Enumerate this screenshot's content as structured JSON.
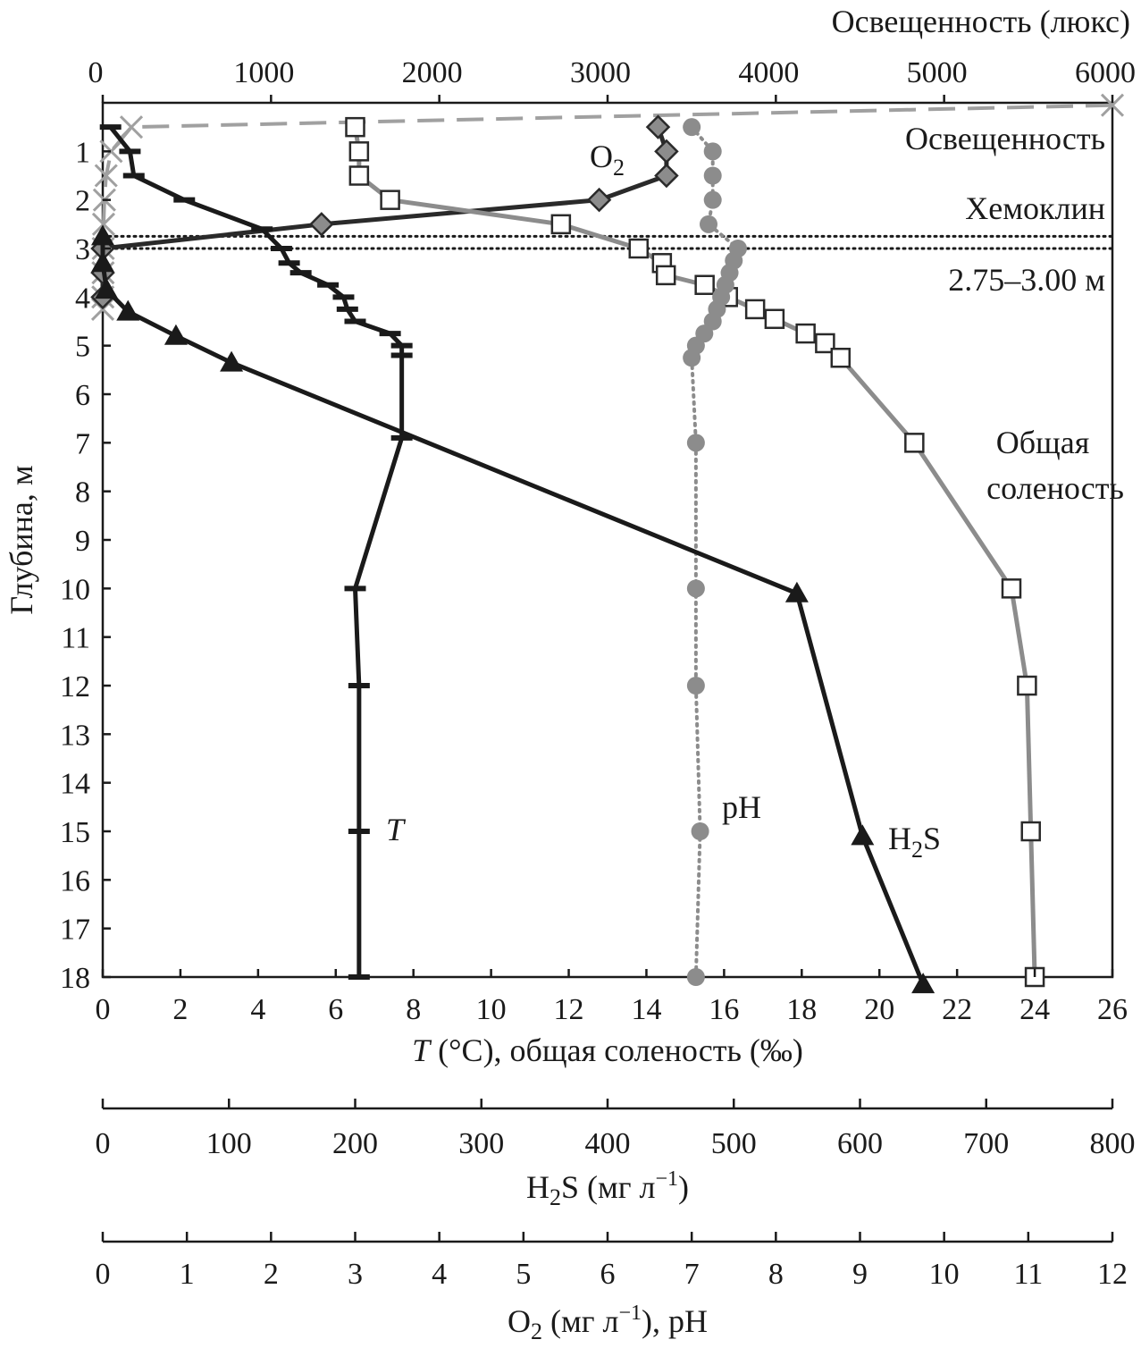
{
  "chart_data": {
    "type": "line",
    "orientation": "depth-profile",
    "y_axis": {
      "label": "Глубина, м",
      "range": [
        0,
        18
      ],
      "ticks": [
        1,
        2,
        3,
        4,
        5,
        6,
        7,
        8,
        9,
        10,
        11,
        12,
        13,
        14,
        15,
        16,
        17,
        18
      ]
    },
    "x_axes": {
      "temperature_salinity": {
        "label_prefix": "T",
        "label_rest": " (°C), общая соленость (‰)",
        "range": [
          0,
          26
        ],
        "ticks": [
          0,
          2,
          4,
          6,
          8,
          10,
          12,
          14,
          16,
          18,
          20,
          22,
          24,
          26
        ]
      },
      "illuminance": {
        "label": "Освещенность (люкс)",
        "range": [
          0,
          6000
        ],
        "ticks": [
          0,
          1000,
          2000,
          3000,
          4000,
          5000,
          6000
        ]
      },
      "h2s": {
        "label_main": "H",
        "label_sub": "2",
        "label_rest": "S (мг л",
        "label_sup": "−1",
        "label_close": ")",
        "range": [
          0,
          800
        ],
        "ticks": [
          0,
          100,
          200,
          300,
          400,
          500,
          600,
          700,
          800
        ]
      },
      "o2_ph": {
        "label_main": "O",
        "label_sub": "2",
        "label_rest": " (мг л",
        "label_sup": "−1",
        "label_close": "), pH",
        "range": [
          0,
          12
        ],
        "ticks": [
          0,
          1,
          2,
          3,
          4,
          5,
          6,
          7,
          8,
          9,
          10,
          11,
          12
        ]
      }
    },
    "series": [
      {
        "name": "Освещенность",
        "axis": "illuminance",
        "color": "#a0a0a0",
        "marker": "x",
        "style": "dashed",
        "points": [
          [
            6000,
            0.05
          ],
          [
            170,
            0.5
          ],
          [
            50,
            1.0
          ],
          [
            20,
            1.5
          ],
          [
            10,
            2.0
          ],
          [
            5,
            2.5
          ],
          [
            3,
            3.0
          ],
          [
            2,
            3.5
          ],
          [
            1,
            4.0
          ],
          [
            0,
            4.25
          ]
        ]
      },
      {
        "name": "O2",
        "axis": "o2_ph",
        "color": "#2a2a2a",
        "marker": "diamond",
        "style": "solid",
        "points": [
          [
            6.6,
            0.5
          ],
          [
            6.7,
            1.0
          ],
          [
            6.7,
            1.5
          ],
          [
            5.9,
            2.0
          ],
          [
            2.6,
            2.5
          ],
          [
            0,
            3.0
          ],
          [
            0,
            3.5
          ],
          [
            0,
            4.0
          ]
        ]
      },
      {
        "name": "Общая соленость",
        "axis": "temperature_salinity",
        "color": "#8c8c8c",
        "marker": "square",
        "style": "solid",
        "points": [
          [
            6.5,
            0.5
          ],
          [
            6.6,
            1.0
          ],
          [
            6.6,
            1.5
          ],
          [
            7.4,
            2.0
          ],
          [
            11.8,
            2.5
          ],
          [
            13.8,
            3.0
          ],
          [
            14.4,
            3.3
          ],
          [
            14.5,
            3.55
          ],
          [
            15.5,
            3.75
          ],
          [
            16.1,
            4.0
          ],
          [
            16.8,
            4.25
          ],
          [
            17.3,
            4.45
          ],
          [
            18.1,
            4.75
          ],
          [
            18.6,
            4.95
          ],
          [
            19.0,
            5.25
          ],
          [
            20.9,
            7.0
          ],
          [
            23.4,
            10.0
          ],
          [
            23.8,
            12.0
          ],
          [
            23.9,
            15.0
          ],
          [
            24.0,
            18.0
          ]
        ]
      },
      {
        "name": "T",
        "axis": "temperature_salinity",
        "color": "#1a1a1a",
        "marker": "bar",
        "style": "solid",
        "points": [
          [
            0.2,
            0.5
          ],
          [
            0.7,
            1.0
          ],
          [
            0.8,
            1.5
          ],
          [
            2.1,
            2.0
          ],
          [
            4.1,
            2.6
          ],
          [
            4.6,
            3.0
          ],
          [
            4.8,
            3.3
          ],
          [
            5.1,
            3.5
          ],
          [
            5.8,
            3.75
          ],
          [
            6.2,
            4.0
          ],
          [
            6.3,
            4.25
          ],
          [
            6.5,
            4.5
          ],
          [
            7.4,
            4.75
          ],
          [
            7.7,
            5.0
          ],
          [
            7.7,
            5.2
          ],
          [
            7.7,
            6.9
          ],
          [
            6.5,
            10.0
          ],
          [
            6.6,
            12.0
          ],
          [
            6.6,
            15.0
          ],
          [
            6.6,
            18.0
          ]
        ]
      },
      {
        "name": "pH",
        "axis": "o2_ph",
        "color": "#8c8c8c",
        "marker": "circle",
        "style": "dotted",
        "points": [
          [
            7.0,
            0.5
          ],
          [
            7.25,
            1.0
          ],
          [
            7.25,
            1.5
          ],
          [
            7.25,
            2.0
          ],
          [
            7.2,
            2.5
          ],
          [
            7.55,
            3.0
          ],
          [
            7.5,
            3.25
          ],
          [
            7.45,
            3.5
          ],
          [
            7.4,
            3.75
          ],
          [
            7.35,
            4.0
          ],
          [
            7.3,
            4.25
          ],
          [
            7.25,
            4.5
          ],
          [
            7.15,
            4.75
          ],
          [
            7.05,
            5.0
          ],
          [
            7.0,
            5.25
          ],
          [
            7.05,
            7.0
          ],
          [
            7.05,
            10.0
          ],
          [
            7.05,
            12.0
          ],
          [
            7.1,
            15.0
          ],
          [
            7.05,
            18.0
          ]
        ]
      },
      {
        "name": "H2S",
        "axis": "h2s",
        "color": "#1a1a1a",
        "marker": "triangle",
        "style": "solid",
        "points": [
          [
            0,
            2.75
          ],
          [
            0,
            3.3
          ],
          [
            3,
            3.85
          ],
          [
            20,
            4.3
          ],
          [
            58,
            4.8
          ],
          [
            102,
            5.35
          ],
          [
            550,
            10.1
          ],
          [
            602,
            15.1
          ],
          [
            650,
            18.15
          ]
        ]
      }
    ],
    "chemocline": {
      "range": [
        2.75,
        3.0
      ],
      "label": "Хемоклин",
      "range_label": "2.75–3.00 м"
    },
    "annotations": {
      "illuminance": "Освещенность",
      "o2_main": "O",
      "o2_sub": "2",
      "salinity_line1": "Общая",
      "salinity_line2": "соленость",
      "t": "T",
      "ph": "pH",
      "h2s_main": "H",
      "h2s_sub": "2",
      "h2s_rest": "S"
    }
  }
}
